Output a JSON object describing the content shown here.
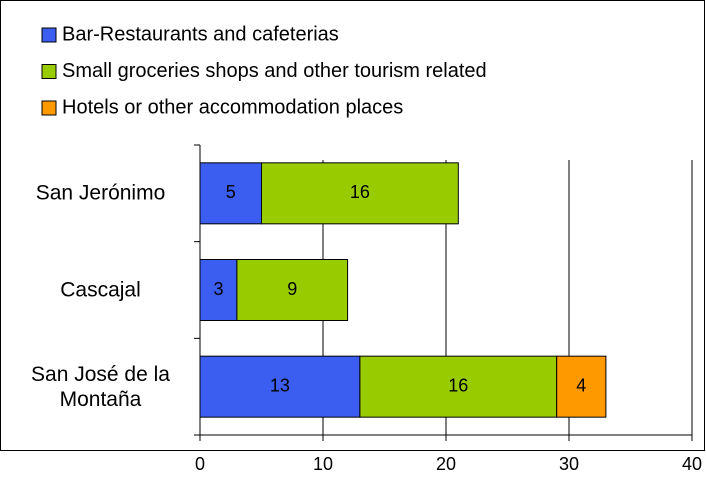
{
  "chart_data": {
    "type": "stacked_barh",
    "categories": [
      "San Jerónimo",
      "Cascajal",
      "San José de la Montaña"
    ],
    "series": [
      {
        "name": "Bar-Restaurants and cafeterias",
        "color": "#3b5ef0",
        "values": [
          5,
          3,
          13
        ]
      },
      {
        "name": "Small groceries shops and other tourism related",
        "color": "#99cc00",
        "values": [
          16,
          9,
          16
        ]
      },
      {
        "name": "Hotels or other accommodation places",
        "color": "#ff9900",
        "values": [
          null,
          null,
          4
        ]
      }
    ],
    "xlim": [
      0,
      40
    ],
    "xticks": [
      0,
      10,
      20,
      30,
      40
    ],
    "grid": true,
    "legend": "top"
  }
}
